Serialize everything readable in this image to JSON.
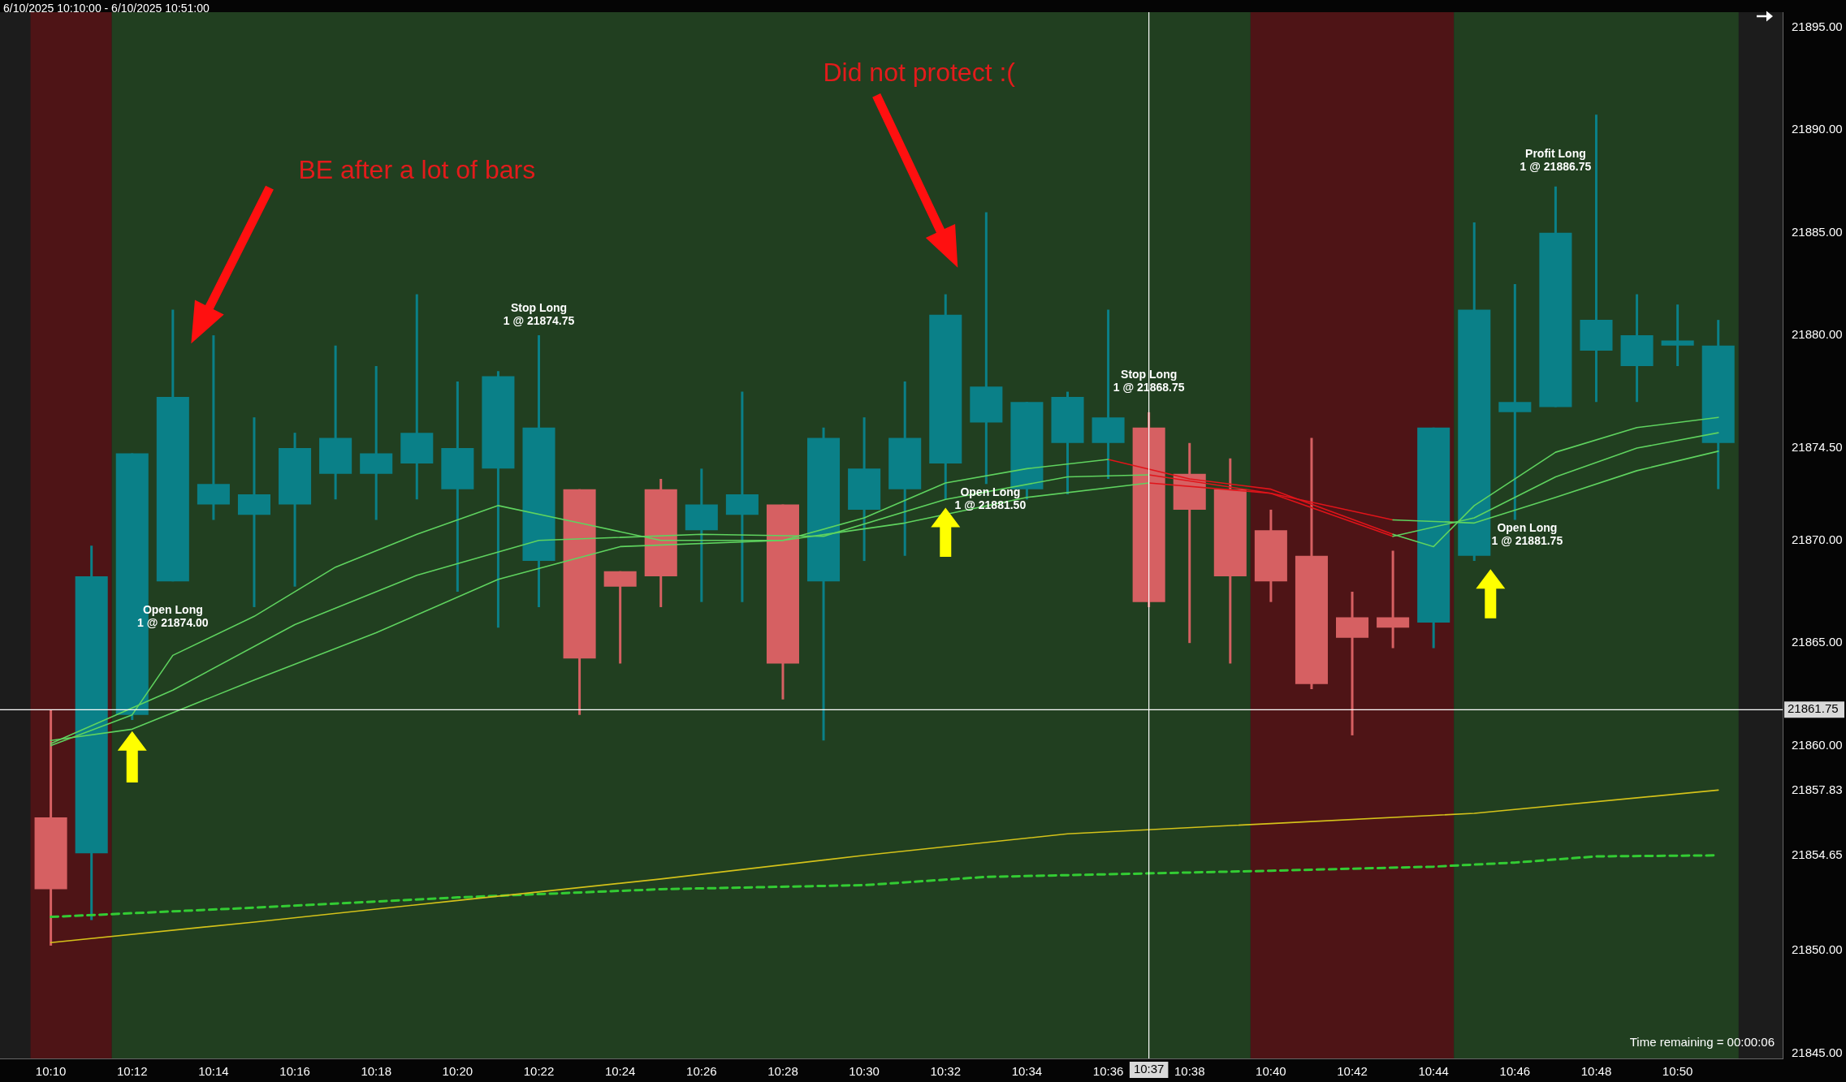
{
  "chart_data": {
    "type": "candlestick",
    "title": "6/10/2025 10:10:00 - 6/10/2025 10:51:00",
    "x": [
      "2025-06-10T10:10",
      "2025-06-10T10:11",
      "2025-06-10T10:12",
      "2025-06-10T10:13",
      "2025-06-10T10:14",
      "2025-06-10T10:15",
      "2025-06-10T10:16",
      "2025-06-10T10:17",
      "2025-06-10T10:18",
      "2025-06-10T10:19",
      "2025-06-10T10:20",
      "2025-06-10T10:21",
      "2025-06-10T10:22",
      "2025-06-10T10:23",
      "2025-06-10T10:24",
      "2025-06-10T10:25",
      "2025-06-10T10:26",
      "2025-06-10T10:27",
      "2025-06-10T10:28",
      "2025-06-10T10:29",
      "2025-06-10T10:30",
      "2025-06-10T10:31",
      "2025-06-10T10:32",
      "2025-06-10T10:33",
      "2025-06-10T10:34",
      "2025-06-10T10:35",
      "2025-06-10T10:36",
      "2025-06-10T10:37",
      "2025-06-10T10:38",
      "2025-06-10T10:39",
      "2025-06-10T10:40",
      "2025-06-10T10:41",
      "2025-06-10T10:42",
      "2025-06-10T10:43",
      "2025-06-10T10:44",
      "2025-06-10T10:45",
      "2025-06-10T10:46",
      "2025-06-10T10:47",
      "2025-06-10T10:48",
      "2025-06-10T10:49",
      "2025-06-10T10:50",
      "2025-06-10T10:51"
    ],
    "ohlc": [
      [
        21856.5,
        21861.75,
        21850.25,
        21853.0
      ],
      [
        21854.75,
        21869.75,
        21851.5,
        21868.25
      ],
      [
        21861.5,
        21874.25,
        21861.25,
        21874.25
      ],
      [
        21868.0,
        21881.25,
        21868.0,
        21877.0
      ],
      [
        21871.75,
        21880.0,
        21871.0,
        21872.75
      ],
      [
        21871.25,
        21876.0,
        21866.75,
        21872.25
      ],
      [
        21871.75,
        21875.25,
        21867.75,
        21874.5
      ],
      [
        21873.25,
        21879.5,
        21872.0,
        21875.0
      ],
      [
        21873.25,
        21878.5,
        21871.0,
        21874.25
      ],
      [
        21873.75,
        21882.0,
        21872.0,
        21875.25
      ],
      [
        21872.5,
        21877.75,
        21867.5,
        21874.5
      ],
      [
        21873.5,
        21878.25,
        21865.75,
        21878.0
      ],
      [
        21869.0,
        21880.0,
        21866.75,
        21875.5
      ],
      [
        21872.5,
        21872.5,
        21861.5,
        21864.25
      ],
      [
        21868.5,
        21868.5,
        21864.0,
        21867.75
      ],
      [
        21872.5,
        21873.0,
        21866.75,
        21868.25
      ],
      [
        21870.5,
        21873.5,
        21867.0,
        21871.75
      ],
      [
        21871.25,
        21877.25,
        21867.0,
        21872.25
      ],
      [
        21871.75,
        21871.75,
        21862.25,
        21864.0
      ],
      [
        21868.0,
        21875.5,
        21860.25,
        21875.0
      ],
      [
        21871.5,
        21876.0,
        21869.0,
        21873.5
      ],
      [
        21872.5,
        21877.75,
        21869.25,
        21875.0
      ],
      [
        21873.75,
        21882.0,
        21872.0,
        21881.0
      ],
      [
        21875.75,
        21886.0,
        21872.75,
        21877.5
      ],
      [
        21872.5,
        21876.75,
        21872.0,
        21876.75
      ],
      [
        21874.75,
        21877.25,
        21872.25,
        21877.0
      ],
      [
        21874.75,
        21881.25,
        21873.0,
        21876.0
      ],
      [
        21875.5,
        21876.25,
        21866.75,
        21867.0
      ],
      [
        21873.25,
        21874.75,
        21865.0,
        21871.5
      ],
      [
        21872.5,
        21874.0,
        21864.0,
        21868.25
      ],
      [
        21870.5,
        21871.5,
        21867.0,
        21868.0
      ],
      [
        21869.25,
        21875.0,
        21862.75,
        21863.0
      ],
      [
        21866.25,
        21867.5,
        21860.5,
        21865.25
      ],
      [
        21866.25,
        21869.5,
        21864.75,
        21865.75
      ],
      [
        21866.0,
        21875.5,
        21864.75,
        21875.5
      ],
      [
        21869.25,
        21885.5,
        21869.0,
        21881.25
      ],
      [
        21876.25,
        21882.5,
        21871.0,
        21876.75
      ],
      [
        21876.5,
        21887.25,
        21876.5,
        21885.0
      ],
      [
        21879.25,
        21890.75,
        21876.75,
        21880.75
      ],
      [
        21878.5,
        21882.0,
        21876.75,
        21880.0
      ],
      [
        21879.5,
        21881.5,
        21878.5,
        21879.75
      ],
      [
        21874.75,
        21880.75,
        21872.5,
        21879.5
      ]
    ],
    "colors": [
      "#d66062",
      "#0a8088",
      "#0a8088",
      "#0a8088",
      "#0a8088",
      "#0a8088",
      "#0a8088",
      "#0a8088",
      "#0a8088",
      "#0a8088",
      "#0a8088",
      "#0a8088",
      "#0a8088",
      "#d66062",
      "#d66062",
      "#d66062",
      "#0a8088",
      "#0a8088",
      "#d66062",
      "#0a8088",
      "#0a8088",
      "#0a8088",
      "#0a8088",
      "#0a8088",
      "#0a8088",
      "#0a8088",
      "#0a8088",
      "#d66062",
      "#d66062",
      "#d66062",
      "#d66062",
      "#d66062",
      "#d66062",
      "#d66062",
      "#0a8088",
      "#0a8088",
      "#0a8088",
      "#0a8088",
      "#0a8088",
      "#0a8088",
      "#0a8088",
      "#0a8088"
    ],
    "series": [
      {
        "type": "line",
        "color": "#d4c21a",
        "x": [
          "2025-06-10T10:10",
          "2025-06-10T10:15",
          "2025-06-10T10:20",
          "2025-06-10T10:25",
          "2025-06-10T10:30",
          "2025-06-10T10:35",
          "2025-06-10T10:40",
          "2025-06-10T10:45",
          "2025-06-10T10:51"
        ],
        "values": [
          21850.4,
          21851.4,
          21852.45,
          21853.5,
          21854.65,
          21855.7,
          21856.2,
          21856.7,
          21857.83
        ]
      },
      {
        "type": "line",
        "color": "#33cc33",
        "line_style": "dashed",
        "x": [
          "2025-06-10T10:10",
          "2025-06-10T10:15",
          "2025-06-10T10:20",
          "2025-06-10T10:25",
          "2025-06-10T10:30",
          "2025-06-10T10:33",
          "2025-06-10T10:40",
          "2025-06-10T10:44",
          "2025-06-10T10:46",
          "2025-06-10T10:48",
          "2025-06-10T10:51"
        ],
        "values": [
          21851.65,
          21852.1,
          21852.6,
          21853.0,
          21853.2,
          21853.6,
          21853.9,
          21854.1,
          21854.3,
          21854.6,
          21854.65
        ]
      },
      {
        "type": "line",
        "color": "#5fd35f",
        "x": [
          "2025-06-10T10:10",
          "2025-06-10T10:12",
          "2025-06-10T10:13",
          "2025-06-10T10:15",
          "2025-06-10T10:17",
          "2025-06-10T10:19",
          "2025-06-10T10:21",
          "2025-06-10T10:23",
          "2025-06-10T10:25",
          "2025-06-10T10:28",
          "2025-06-10T10:30",
          "2025-06-10T10:32",
          "2025-06-10T10:34",
          "2025-06-10T10:36",
          "2025-06-10T10:40",
          "2025-06-10T10:43",
          "2025-06-10T10:44",
          "2025-06-10T10:45",
          "2025-06-10T10:47",
          "2025-06-10T10:49",
          "2025-06-10T10:51"
        ],
        "values": [
          21860.0,
          21861.5,
          21864.4,
          21866.3,
          21868.7,
          21870.3,
          21871.7,
          21870.85,
          21870.0,
          21870.0,
          21871.1,
          21872.8,
          21873.5,
          21873.95,
          null,
          21870.3,
          21869.7,
          21871.7,
          21874.3,
          21875.5,
          21876.0
        ]
      },
      {
        "type": "line",
        "color": "#e0141a",
        "x": [
          "2025-06-10T10:36",
          "2025-06-10T10:38",
          "2025-06-10T10:40",
          "2025-06-10T10:43"
        ],
        "values": [
          21873.95,
          21873.0,
          21872.5,
          21870.3
        ]
      },
      {
        "type": "line",
        "color": "#5fd35f",
        "x": [
          "2025-06-10T10:10",
          "2025-06-10T10:12",
          "2025-06-10T10:15",
          "2025-06-10T10:18",
          "2025-06-10T10:21",
          "2025-06-10T10:24",
          "2025-06-10T10:28",
          "2025-06-10T10:31",
          "2025-06-10T10:34",
          "2025-06-10T10:37",
          "2025-06-10T10:40",
          "2025-06-10T10:43",
          "2025-06-10T10:45",
          "2025-06-10T10:47",
          "2025-06-10T10:49",
          "2025-06-10T10:51"
        ],
        "values": [
          21860.25,
          21860.8,
          21863.2,
          21865.5,
          21868.1,
          21869.7,
          21870.0,
          21870.85,
          21872.1,
          21872.8,
          null,
          21871.0,
          21870.85,
          21872.1,
          21873.4,
          21874.35
        ]
      },
      {
        "type": "line",
        "color": "#e0141a",
        "x": [
          "2025-06-10T10:37",
          "2025-06-10T10:40",
          "2025-06-10T10:43"
        ],
        "values": [
          21872.8,
          21872.3,
          21871.0
        ]
      },
      {
        "type": "line",
        "color": "#5fd35f",
        "x": [
          "2025-06-10T10:10",
          "2025-06-10T10:13",
          "2025-06-10T10:16",
          "2025-06-10T10:19",
          "2025-06-10T10:22",
          "2025-06-10T10:26",
          "2025-06-10T10:29",
          "2025-06-10T10:32",
          "2025-06-10T10:35",
          "2025-06-10T10:37",
          "2025-06-10T10:40",
          "2025-06-10T10:43",
          "2025-06-10T10:45",
          "2025-06-10T10:47",
          "2025-06-10T10:49",
          "2025-06-10T10:51"
        ],
        "values": [
          21860.1,
          21862.7,
          21865.9,
          21868.3,
          21870.0,
          21870.3,
          21870.2,
          21872.0,
          21873.1,
          21873.2,
          null,
          21870.2,
          21871.1,
          21873.1,
          21874.5,
          21875.25
        ]
      },
      {
        "type": "line",
        "color": "#e0141a",
        "x": [
          "2025-06-10T10:37",
          "2025-06-10T10:40",
          "2025-06-10T10:43"
        ],
        "values": [
          21873.2,
          21872.3,
          21870.2
        ]
      }
    ],
    "xlim": [
      "2025-06-10T10:08:45",
      "2025-06-10T10:52:35"
    ],
    "xticks": [
      {
        "value": "2025-06-10T10:10",
        "label": "10:10"
      },
      {
        "value": "2025-06-10T10:12",
        "label": "10:12"
      },
      {
        "value": "2025-06-10T10:14",
        "label": "10:14"
      },
      {
        "value": "2025-06-10T10:16",
        "label": "10:16"
      },
      {
        "value": "2025-06-10T10:18",
        "label": "10:18"
      },
      {
        "value": "2025-06-10T10:20",
        "label": "10:20"
      },
      {
        "value": "2025-06-10T10:22",
        "label": "10:22"
      },
      {
        "value": "2025-06-10T10:24",
        "label": "10:24"
      },
      {
        "value": "2025-06-10T10:26",
        "label": "10:26"
      },
      {
        "value": "2025-06-10T10:28",
        "label": "10:28"
      },
      {
        "value": "2025-06-10T10:30",
        "label": "10:30"
      },
      {
        "value": "2025-06-10T10:32",
        "label": "10:32"
      },
      {
        "value": "2025-06-10T10:34",
        "label": "10:34"
      },
      {
        "value": "2025-06-10T10:36",
        "label": "10:36"
      },
      {
        "value": "2025-06-10T10:38",
        "label": "10:38"
      },
      {
        "value": "2025-06-10T10:40",
        "label": "10:40"
      },
      {
        "value": "2025-06-10T10:42",
        "label": "10:42"
      },
      {
        "value": "2025-06-10T10:44",
        "label": "10:44"
      },
      {
        "value": "2025-06-10T10:46",
        "label": "10:46"
      },
      {
        "value": "2025-06-10T10:48",
        "label": "10:48"
      },
      {
        "value": "2025-06-10T10:50",
        "label": "10:50"
      }
    ],
    "ylim": [
      21844.75,
      21895.75
    ],
    "yticks": [
      {
        "value": 21845,
        "label": "21845.00"
      },
      {
        "value": 21850,
        "label": "21850.00"
      },
      {
        "value": 21854.65,
        "label": "21854.65"
      },
      {
        "value": 21857.83,
        "label": "21857.83"
      },
      {
        "value": 21860,
        "label": "21860.00"
      },
      {
        "value": 21865,
        "label": "21865.00"
      },
      {
        "value": 21870,
        "label": "21870.00"
      },
      {
        "value": 21874.5,
        "label": "21874.50"
      },
      {
        "value": 21880,
        "label": "21880.00"
      },
      {
        "value": 21885,
        "label": "21885.00"
      },
      {
        "value": 21890,
        "label": "21890.00"
      },
      {
        "value": 21895,
        "label": "21895.00"
      }
    ],
    "bands": [
      {
        "axis": "x",
        "from": "2025-06-10T10:09:30",
        "to": "2025-06-10T10:11:30",
        "color": "#4e1416"
      },
      {
        "axis": "x",
        "from": "2025-06-10T10:11:30",
        "to": "2025-06-10T10:39:30",
        "color": "#213f20"
      },
      {
        "axis": "x",
        "from": "2025-06-10T10:39:30",
        "to": "2025-06-10T10:44:30",
        "color": "#4e1416"
      },
      {
        "axis": "x",
        "from": "2025-06-10T10:44:30",
        "to": "2025-06-10T10:51:30",
        "color": "#213f20"
      }
    ],
    "ref_lines": [
      {
        "axis": "y",
        "value": 21861.75,
        "label": "21861.75",
        "color": "#ffffff"
      },
      {
        "axis": "x",
        "value": "2025-06-10T10:37",
        "label": "10:37",
        "color": "#ffffff"
      }
    ],
    "annotations": [
      "BE after a lot of bars",
      "Did not protect :(",
      "Open Long\n1 @ 21874.00",
      "Stop Long\n1 @ 21874.75",
      "Open Long\n1 @ 21881.50",
      "Stop Long\n1 @ 21868.75",
      "Open Long\n1 @ 21881.75",
      "Profit Long\n1 @ 21886.75",
      "Time remaining = 00:00:06"
    ]
  }
}
